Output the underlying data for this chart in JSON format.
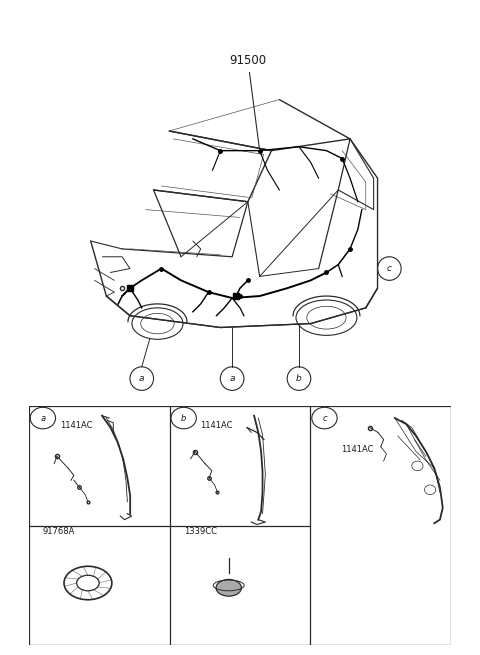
{
  "bg_color": "#ffffff",
  "fig_width": 4.8,
  "fig_height": 6.55,
  "dpi": 100,
  "main_label": "91500",
  "part_labels": {
    "cell_a_top": "1141AC",
    "cell_b_top": "1141AC",
    "cell_c_top": "1141AC",
    "cell_a_bot": "91768A",
    "cell_b_bot": "1339CC"
  },
  "line_color": "#2a2a2a",
  "light_line": "#555555",
  "text_color": "#1a1a1a"
}
